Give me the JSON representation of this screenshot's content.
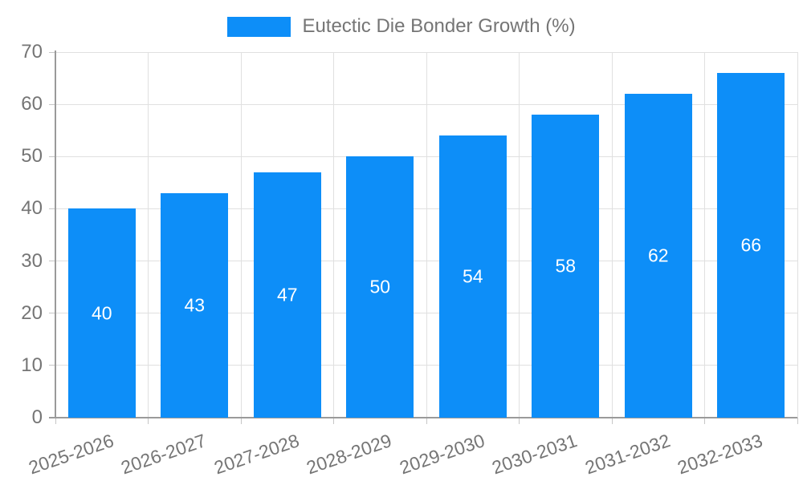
{
  "chart_data": {
    "type": "bar",
    "title": "",
    "legend_label": "Eutectic Die Bonder Growth (%)",
    "legend_position": "top",
    "categories": [
      "2025-2026",
      "2026-2027",
      "2027-2028",
      "2028-2029",
      "2029-2030",
      "2030-2031",
      "2031-2032",
      "2032-2033"
    ],
    "values": [
      40,
      43,
      47,
      50,
      54,
      58,
      62,
      66
    ],
    "value_labels_shown": true,
    "xlabel": "",
    "ylabel": "",
    "ylim": [
      0,
      70
    ],
    "yticks": [
      0,
      10,
      20,
      30,
      40,
      50,
      60,
      70
    ],
    "grid": true,
    "colors": {
      "bar": "#0d8ef8",
      "grid": "#e0e0e0",
      "axis": "#9a9a9a",
      "tick": "#c6c6c6",
      "text": "#757575",
      "value_label": "#ffffff",
      "background": "#ffffff"
    }
  }
}
